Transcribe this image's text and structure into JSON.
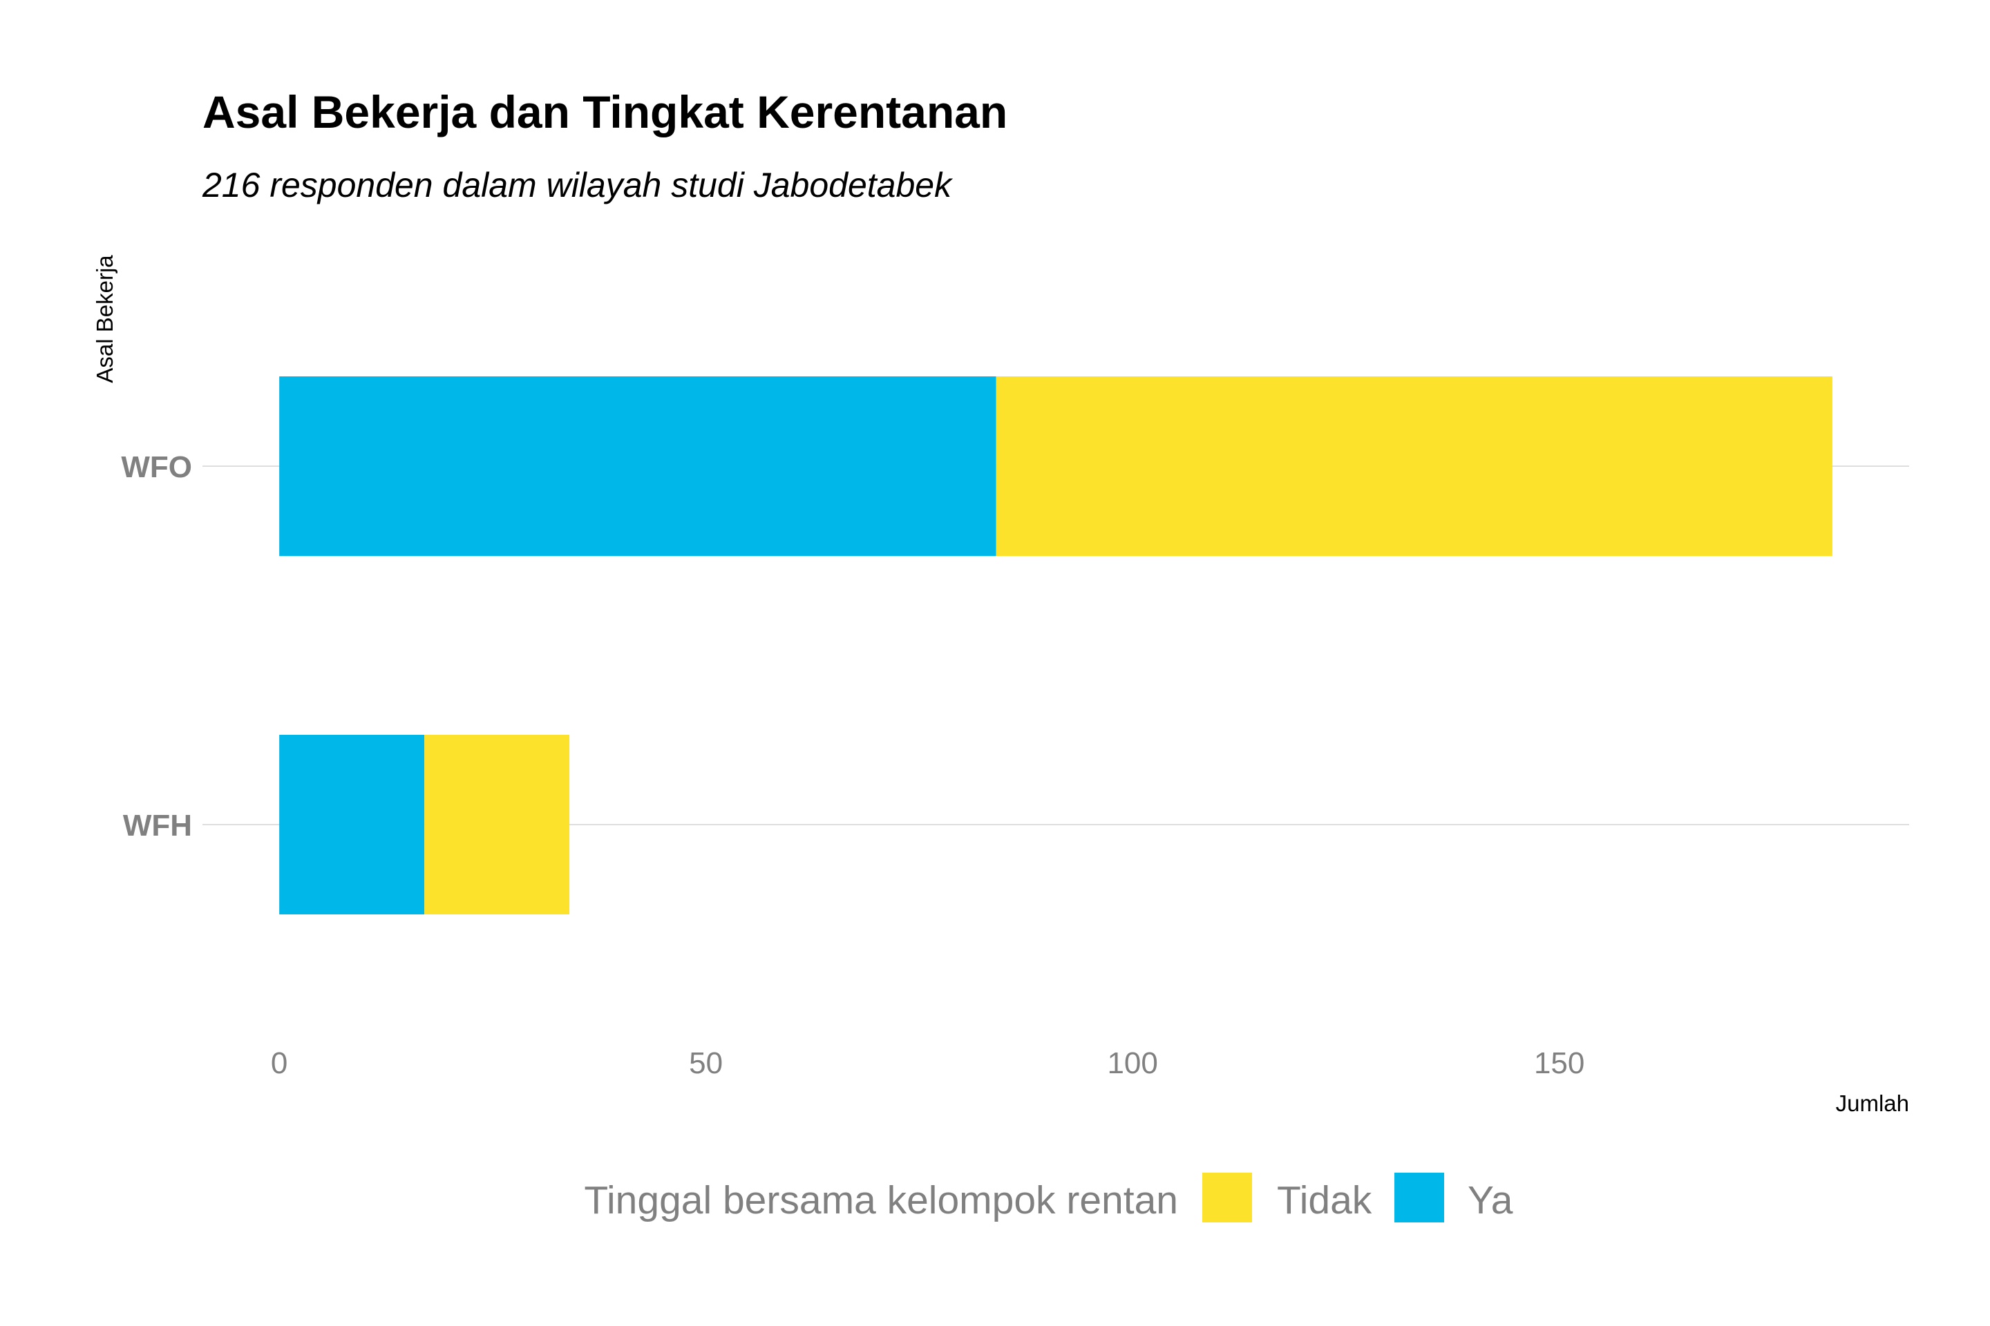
{
  "chart_data": {
    "type": "bar",
    "orientation": "horizontal",
    "stacked": true,
    "title": "Asal Bekerja dan Tingkat Kerentanan",
    "subtitle": "216 responden dalam wilayah studi Jabodetabek",
    "xlabel": "Jumlah",
    "ylabel": "Asal Bekerja",
    "categories": [
      "WFO",
      "WFH"
    ],
    "series": [
      {
        "name": "Ya",
        "values": [
          84,
          17
        ],
        "color": "#00B7EA"
      },
      {
        "name": "Tidak",
        "values": [
          98,
          17
        ],
        "color": "#FDE22B"
      }
    ],
    "xlim": [
      -9,
      191
    ],
    "xticks": [
      0,
      50,
      100,
      150
    ],
    "grid": true,
    "legend": {
      "title": "Tinggal bersama kelompok rentan",
      "position": "bottom",
      "entries": [
        {
          "label": "Tidak",
          "color": "#FDE22B"
        },
        {
          "label": "Ya",
          "color": "#00B7EA"
        }
      ]
    }
  }
}
